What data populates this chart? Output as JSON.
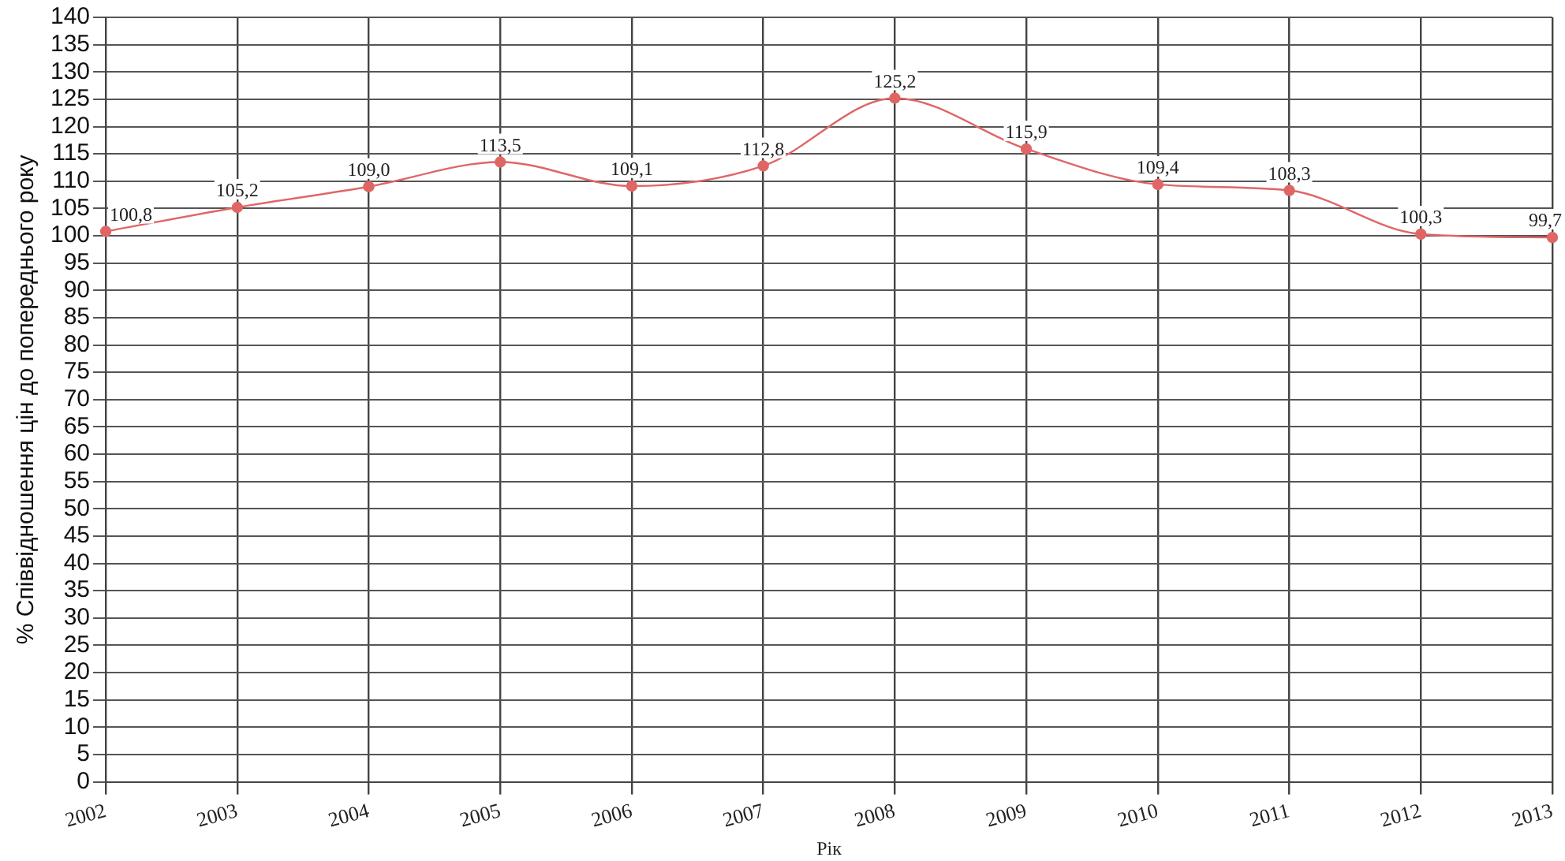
{
  "chart_data": {
    "type": "line",
    "xlabel": "Рік",
    "ylabel": "% Співвідношення цін до попереднього року",
    "categories": [
      "2002",
      "2003",
      "2004",
      "2005",
      "2006",
      "2007",
      "2008",
      "2009",
      "2010",
      "2011",
      "2012",
      "2013"
    ],
    "series": [
      {
        "color": "#e06666",
        "values": [
          100.8,
          105.2,
          109.0,
          113.5,
          109.1,
          112.8,
          125.2,
          115.9,
          109.4,
          108.3,
          100.3,
          99.7
        ],
        "value_labels": [
          "100,8",
          "105,2",
          "109,0",
          "113,5",
          "109,1",
          "112,8",
          "125,2",
          "115,9",
          "109,4",
          "108,3",
          "100,3",
          "99,7"
        ]
      }
    ],
    "ylim": [
      0,
      140
    ],
    "yticks": [
      0,
      5,
      10,
      15,
      20,
      25,
      30,
      35,
      40,
      45,
      50,
      55,
      60,
      65,
      70,
      75,
      80,
      85,
      90,
      95,
      100,
      105,
      110,
      115,
      120,
      125,
      130,
      135,
      140
    ],
    "grid": true,
    "legend": false,
    "marker": "circle"
  }
}
